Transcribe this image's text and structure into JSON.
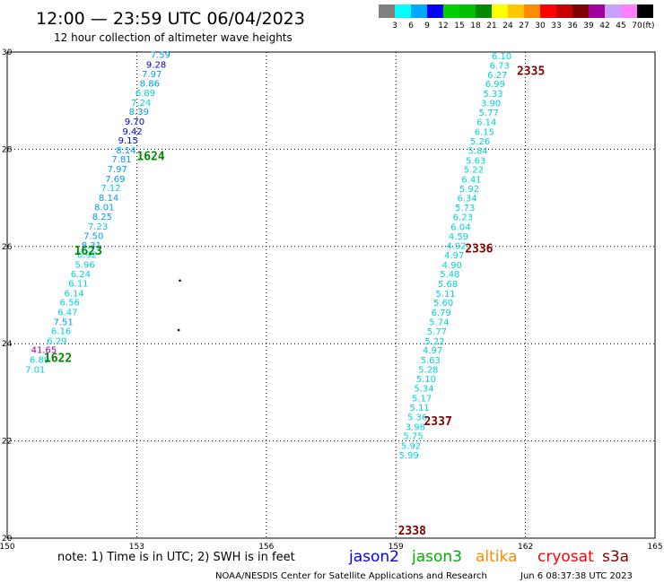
{
  "header": {
    "title": "12:00 — 23:59 UTC 06/04/2023",
    "subtitle": "12 hour collection of altimeter wave heights"
  },
  "legend": {
    "unit": "(ft)",
    "bins": [
      {
        "label": "3",
        "color": "#808080"
      },
      {
        "label": "6",
        "color": "#00ffff"
      },
      {
        "label": "9",
        "color": "#00a8ff"
      },
      {
        "label": "12",
        "color": "#0000ff"
      },
      {
        "label": "15",
        "color": "#00d000"
      },
      {
        "label": "18",
        "color": "#00c000"
      },
      {
        "label": "21",
        "color": "#008800"
      },
      {
        "label": "24",
        "color": "#ffff00"
      },
      {
        "label": "27",
        "color": "#ffc800"
      },
      {
        "label": "30",
        "color": "#ff8c00"
      },
      {
        "label": "33",
        "color": "#ff0000"
      },
      {
        "label": "36",
        "color": "#c80000"
      },
      {
        "label": "39",
        "color": "#800000"
      },
      {
        "label": "42",
        "color": "#a000a0"
      },
      {
        "label": "45",
        "color": "#c8a0ff"
      },
      {
        "label": "70",
        "color": "#ff80ff"
      },
      {
        "label": "",
        "color": "#000000"
      }
    ]
  },
  "footer": {
    "note": "note: 1) Time is in UTC; 2) SWH is in feet",
    "credit": "NOAA/NESDIS Center for Satellite Applications and Research",
    "timestamp": "Jun  6 08:37:38 UTC 2023",
    "satellites": [
      {
        "name": "jason2",
        "color": "#0000ff"
      },
      {
        "name": "jason3",
        "color": "#00b000"
      },
      {
        "name": "altika",
        "color": "#ff8c00"
      },
      {
        "name": "cryosat",
        "color": "#ff0000"
      },
      {
        "name": "s3a",
        "color": "#800000"
      }
    ]
  },
  "chart_data": {
    "type": "scatter",
    "xlim": [
      150,
      165
    ],
    "ylim": [
      20,
      30
    ],
    "x_ticks": [
      "150",
      "153",
      "156",
      "159",
      "162",
      "165"
    ],
    "y_ticks": [
      "20",
      "22",
      "24",
      "26",
      "28",
      "30"
    ],
    "grid": true,
    "time_labels": [
      {
        "text": "1622",
        "lon": 150.85,
        "lat": 23.7,
        "color": "#008800"
      },
      {
        "text": "1623",
        "lon": 151.55,
        "lat": 25.9,
        "color": "#008800"
      },
      {
        "text": "1624",
        "lon": 153.0,
        "lat": 27.85,
        "color": "#008800"
      },
      {
        "text": "2335",
        "lon": 161.8,
        "lat": 29.6,
        "color": "#800000"
      },
      {
        "text": "2336",
        "lon": 160.6,
        "lat": 25.95,
        "color": "#800000"
      },
      {
        "text": "2337",
        "lon": 159.65,
        "lat": 22.4,
        "color": "#800000"
      },
      {
        "text": "2338",
        "lon": 159.05,
        "lat": 20.15,
        "color": "#800000"
      }
    ],
    "dots": [
      {
        "lon": 154.0,
        "lat": 25.3
      },
      {
        "lon": 153.97,
        "lat": 24.28
      }
    ],
    "series": [
      {
        "name": "jason3",
        "points": [
          {
            "lon": 153.55,
            "lat": 29.95,
            "v": "7.59"
          },
          {
            "lon": 153.45,
            "lat": 29.75,
            "v": "9.28"
          },
          {
            "lon": 153.35,
            "lat": 29.56,
            "v": "7.97"
          },
          {
            "lon": 153.3,
            "lat": 29.36,
            "v": "8.86"
          },
          {
            "lon": 153.2,
            "lat": 29.17,
            "v": "6.89"
          },
          {
            "lon": 153.1,
            "lat": 28.97,
            "v": "7.24"
          },
          {
            "lon": 153.05,
            "lat": 28.78,
            "v": "8.39"
          },
          {
            "lon": 152.95,
            "lat": 28.58,
            "v": "9.70"
          },
          {
            "lon": 152.9,
            "lat": 28.38,
            "v": "9.42"
          },
          {
            "lon": 152.8,
            "lat": 28.19,
            "v": "9.15"
          },
          {
            "lon": 152.75,
            "lat": 27.99,
            "v": "8.14"
          },
          {
            "lon": 152.65,
            "lat": 27.8,
            "v": "7.81"
          },
          {
            "lon": 152.55,
            "lat": 27.6,
            "v": "7.97"
          },
          {
            "lon": 152.5,
            "lat": 27.4,
            "v": "7.69"
          },
          {
            "lon": 152.4,
            "lat": 27.21,
            "v": "7.12"
          },
          {
            "lon": 152.35,
            "lat": 27.01,
            "v": "8.14"
          },
          {
            "lon": 152.25,
            "lat": 26.82,
            "v": "8.01"
          },
          {
            "lon": 152.2,
            "lat": 26.62,
            "v": "8.25"
          },
          {
            "lon": 152.1,
            "lat": 26.42,
            "v": "7.23"
          },
          {
            "lon": 152.0,
            "lat": 26.23,
            "v": "7.50"
          },
          {
            "lon": 151.95,
            "lat": 26.03,
            "v": "8.31"
          },
          {
            "lon": 151.85,
            "lat": 25.84,
            "v": "6.92"
          },
          {
            "lon": 151.8,
            "lat": 25.64,
            "v": "5.96"
          },
          {
            "lon": 151.7,
            "lat": 25.44,
            "v": "6.24"
          },
          {
            "lon": 151.65,
            "lat": 25.25,
            "v": "6.11"
          },
          {
            "lon": 151.55,
            "lat": 25.05,
            "v": "6.14"
          },
          {
            "lon": 151.45,
            "lat": 24.86,
            "v": "6.56"
          },
          {
            "lon": 151.4,
            "lat": 24.66,
            "v": "6.47"
          },
          {
            "lon": 151.3,
            "lat": 24.46,
            "v": "7.51"
          },
          {
            "lon": 151.25,
            "lat": 24.27,
            "v": "6.16"
          },
          {
            "lon": 151.15,
            "lat": 24.07,
            "v": "6.29"
          },
          {
            "lon": 150.85,
            "lat": 23.88,
            "v": "41.65"
          },
          {
            "lon": 150.75,
            "lat": 23.68,
            "v": "6.89"
          },
          {
            "lon": 150.65,
            "lat": 23.48,
            "v": "7.01"
          }
        ]
      },
      {
        "name": "s3a",
        "points": [
          {
            "lon": 161.45,
            "lat": 29.93,
            "v": "6.10"
          },
          {
            "lon": 161.4,
            "lat": 29.73,
            "v": "6.73"
          },
          {
            "lon": 161.35,
            "lat": 29.54,
            "v": "6.27"
          },
          {
            "lon": 161.3,
            "lat": 29.35,
            "v": "6.99"
          },
          {
            "lon": 161.25,
            "lat": 29.15,
            "v": "5.33"
          },
          {
            "lon": 161.2,
            "lat": 28.96,
            "v": "3.90"
          },
          {
            "lon": 161.15,
            "lat": 28.76,
            "v": "5.77"
          },
          {
            "lon": 161.1,
            "lat": 28.57,
            "v": "6.14"
          },
          {
            "lon": 161.05,
            "lat": 28.37,
            "v": "6.15"
          },
          {
            "lon": 160.95,
            "lat": 28.17,
            "v": "5.26"
          },
          {
            "lon": 160.9,
            "lat": 27.98,
            "v": "5.84"
          },
          {
            "lon": 160.85,
            "lat": 27.78,
            "v": "5.63"
          },
          {
            "lon": 160.8,
            "lat": 27.59,
            "v": "5.22"
          },
          {
            "lon": 160.75,
            "lat": 27.39,
            "v": "6.41"
          },
          {
            "lon": 160.7,
            "lat": 27.2,
            "v": "5.92"
          },
          {
            "lon": 160.65,
            "lat": 27.0,
            "v": "6.34"
          },
          {
            "lon": 160.6,
            "lat": 26.81,
            "v": "5.73"
          },
          {
            "lon": 160.55,
            "lat": 26.61,
            "v": "6.23"
          },
          {
            "lon": 160.5,
            "lat": 26.41,
            "v": "6.04"
          },
          {
            "lon": 160.45,
            "lat": 26.22,
            "v": "4.59"
          },
          {
            "lon": 160.4,
            "lat": 26.02,
            "v": "4.92"
          },
          {
            "lon": 160.35,
            "lat": 25.83,
            "v": "4.97"
          },
          {
            "lon": 160.3,
            "lat": 25.63,
            "v": "4.90"
          },
          {
            "lon": 160.25,
            "lat": 25.44,
            "v": "5.48"
          },
          {
            "lon": 160.2,
            "lat": 25.24,
            "v": "5.68"
          },
          {
            "lon": 160.15,
            "lat": 25.04,
            "v": "5.11"
          },
          {
            "lon": 160.1,
            "lat": 24.85,
            "v": "5.60"
          },
          {
            "lon": 160.05,
            "lat": 24.65,
            "v": "6.79"
          },
          {
            "lon": 160.0,
            "lat": 24.46,
            "v": "5.74"
          },
          {
            "lon": 159.95,
            "lat": 24.26,
            "v": "5.77"
          },
          {
            "lon": 159.9,
            "lat": 24.06,
            "v": "5.22"
          },
          {
            "lon": 159.85,
            "lat": 23.87,
            "v": "4.97"
          },
          {
            "lon": 159.8,
            "lat": 23.67,
            "v": "5.63"
          },
          {
            "lon": 159.75,
            "lat": 23.48,
            "v": "5.28"
          },
          {
            "lon": 159.7,
            "lat": 23.28,
            "v": "5.10"
          },
          {
            "lon": 159.65,
            "lat": 23.09,
            "v": "5.34"
          },
          {
            "lon": 159.6,
            "lat": 22.89,
            "v": "5.17"
          },
          {
            "lon": 159.55,
            "lat": 22.69,
            "v": "5.11"
          },
          {
            "lon": 159.5,
            "lat": 22.5,
            "v": "5.36"
          },
          {
            "lon": 159.45,
            "lat": 22.3,
            "v": "3.98"
          },
          {
            "lon": 159.4,
            "lat": 22.11,
            "v": "5.75"
          },
          {
            "lon": 159.35,
            "lat": 21.91,
            "v": "5.92"
          },
          {
            "lon": 159.3,
            "lat": 21.72,
            "v": "5.99"
          }
        ]
      }
    ]
  }
}
